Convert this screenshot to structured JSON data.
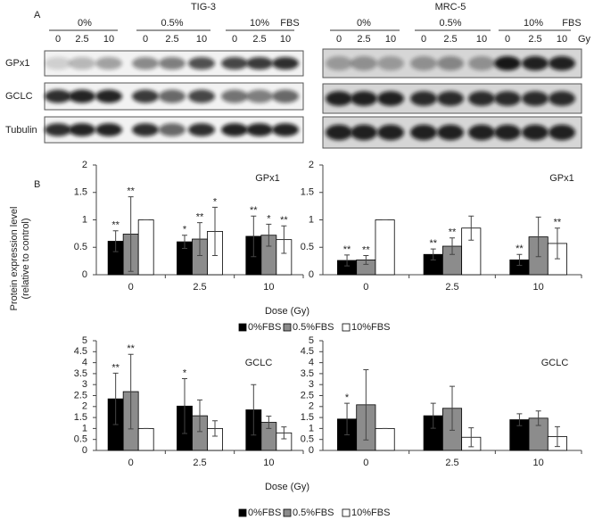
{
  "figure": {
    "panel_a": "A",
    "panel_b": "B",
    "rows": [
      "GPx1",
      "GCLC",
      "Tubulin"
    ],
    "blots": [
      {
        "cell_line": "TIG-3",
        "serum": [
          "0%",
          "0.5%",
          "10%"
        ],
        "fbs": "FBS",
        "doses": [
          "0",
          "2.5",
          "10",
          "0",
          "2.5",
          "10",
          "0",
          "2.5",
          "10"
        ]
      },
      {
        "cell_line": "MRC-5",
        "serum": [
          "0%",
          "0.5%",
          "10%"
        ],
        "fbs": "FBS",
        "doses": [
          "0",
          "2.5",
          "10",
          "0",
          "2.5",
          "10",
          "0",
          "2.5",
          "10"
        ],
        "unit": "Gy"
      }
    ],
    "y_label": [
      "Protein expression level",
      "(relative to control)"
    ]
  },
  "chart_data": [
    {
      "type": "bar",
      "label": "GPx1",
      "x_label": "Dose (Gy)",
      "categories": [
        "0",
        "2.5",
        "10"
      ],
      "ylim": [
        0,
        2
      ],
      "yticks": [
        0,
        0.5,
        1,
        1.5,
        2
      ],
      "series": [
        {
          "name": "0%FBS",
          "color": "#000000",
          "values": [
            0.61,
            0.6,
            0.7
          ],
          "errors": [
            0.19,
            0.12,
            0.37
          ],
          "stars": [
            "**",
            "*",
            "**"
          ]
        },
        {
          "name": "0.5%FBS",
          "color": "#8c8c8c",
          "values": [
            0.74,
            0.65,
            0.72
          ],
          "errors": [
            0.68,
            0.3,
            0.2
          ],
          "stars": [
            "**",
            "**",
            "*"
          ]
        },
        {
          "name": "10%FBS",
          "color": "#ffffff",
          "values": [
            1,
            0.79,
            0.64
          ],
          "errors": [
            0,
            0.44,
            0.25
          ],
          "stars": [
            null,
            "*",
            "**"
          ]
        }
      ]
    },
    {
      "type": "bar",
      "label": "GPx1",
      "categories": [
        "0",
        "2.5",
        "10"
      ],
      "ylim": [
        0,
        2
      ],
      "yticks": [
        0,
        0.5,
        1,
        1.5,
        2
      ],
      "series": [
        {
          "name": "0%FBS",
          "color": "#000000",
          "values": [
            0.26,
            0.37,
            0.27
          ],
          "errors": [
            0.1,
            0.1,
            0.1
          ],
          "stars": [
            "**",
            "**",
            "**"
          ]
        },
        {
          "name": "0.5%FBS",
          "color": "#8c8c8c",
          "values": [
            0.27,
            0.52,
            0.69
          ],
          "errors": [
            0.08,
            0.15,
            0.36
          ],
          "stars": [
            "**",
            "**",
            null
          ]
        },
        {
          "name": "10%FBS",
          "color": "#ffffff",
          "values": [
            1,
            0.85,
            0.57
          ],
          "errors": [
            0,
            0.22,
            0.28
          ],
          "stars": [
            null,
            null,
            "**"
          ]
        }
      ]
    },
    {
      "type": "bar",
      "label": "GCLC",
      "x_label": "Dose (Gy)",
      "categories": [
        "0",
        "2.5",
        "10"
      ],
      "ylim": [
        0,
        5
      ],
      "yticks": [
        0,
        0.5,
        1,
        1.5,
        2,
        2.5,
        3,
        3.5,
        4,
        4.5,
        5
      ],
      "series": [
        {
          "name": "0%FBS",
          "color": "#000000",
          "values": [
            2.35,
            2.02,
            1.85
          ],
          "errors": [
            1.17,
            1.25,
            1.15
          ],
          "stars": [
            "**",
            "*",
            null
          ]
        },
        {
          "name": "0.5%FBS",
          "color": "#8c8c8c",
          "values": [
            2.68,
            1.58,
            1.28
          ],
          "errors": [
            1.7,
            0.72,
            0.28
          ],
          "stars": [
            "**",
            null,
            null
          ]
        },
        {
          "name": "10%FBS",
          "color": "#ffffff",
          "values": [
            1,
            1,
            0.8
          ],
          "errors": [
            0,
            0.35,
            0.27
          ],
          "stars": [
            null,
            null,
            null
          ]
        }
      ]
    },
    {
      "type": "bar",
      "label": "GCLC",
      "categories": [
        "0",
        "2.5",
        "10"
      ],
      "ylim": [
        0,
        5
      ],
      "yticks": [
        0,
        0.5,
        1,
        1.5,
        2,
        2.5,
        3,
        3.5,
        4,
        4.5,
        5
      ],
      "series": [
        {
          "name": "0%FBS",
          "color": "#000000",
          "values": [
            1.43,
            1.58,
            1.4
          ],
          "errors": [
            0.72,
            0.57,
            0.27
          ],
          "stars": [
            "*",
            null,
            null
          ]
        },
        {
          "name": "0.5%FBS",
          "color": "#8c8c8c",
          "values": [
            2.08,
            1.92,
            1.47
          ],
          "errors": [
            1.6,
            1.0,
            0.33
          ],
          "stars": [
            null,
            null,
            null
          ]
        },
        {
          "name": "10%FBS",
          "color": "#ffffff",
          "values": [
            1,
            0.6,
            0.63
          ],
          "errors": [
            0,
            0.43,
            0.45
          ],
          "stars": [
            null,
            null,
            null
          ]
        }
      ]
    }
  ]
}
